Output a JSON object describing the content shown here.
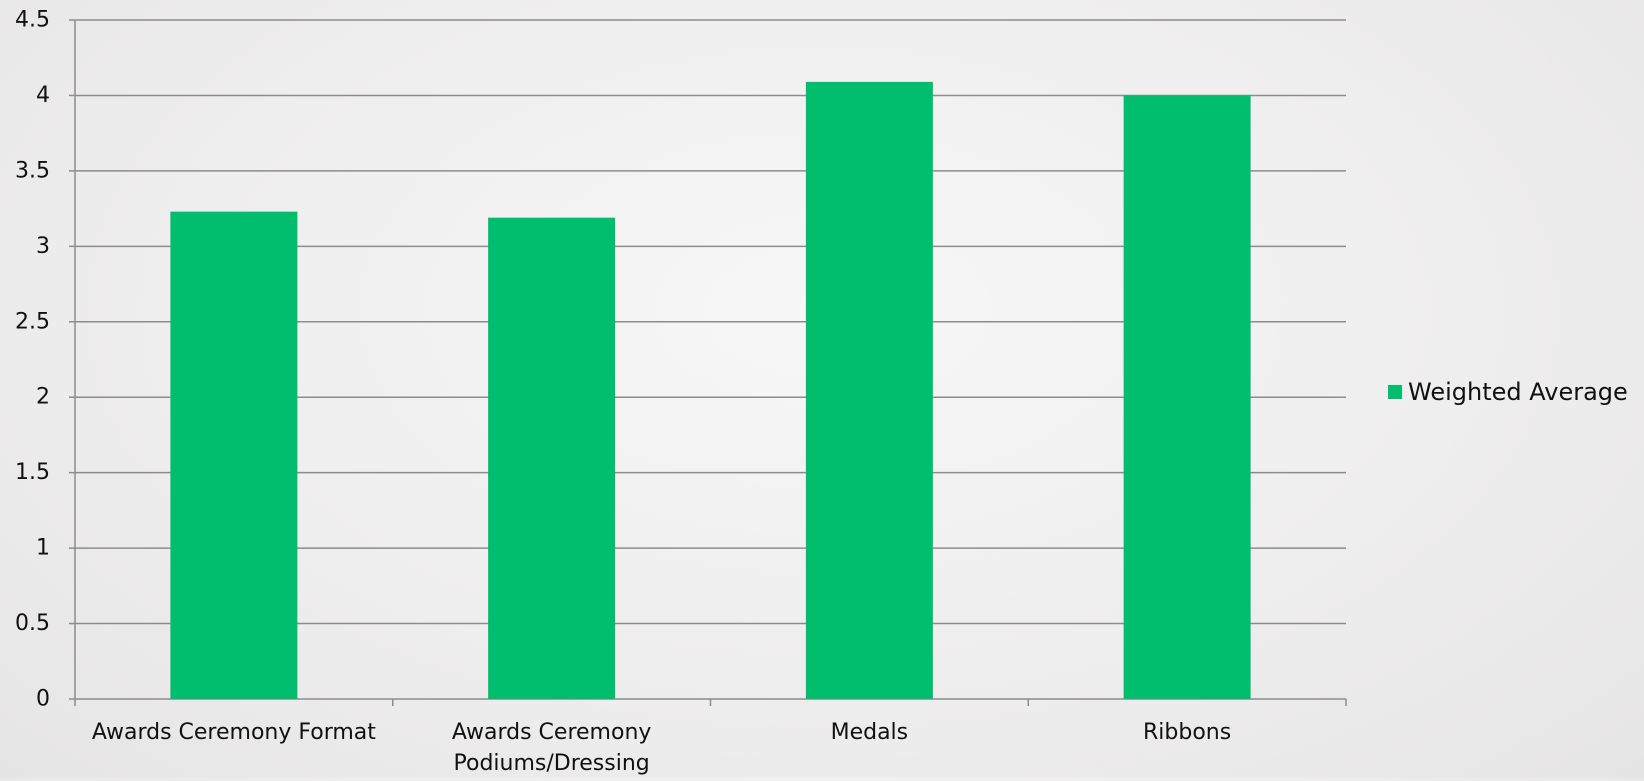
{
  "chart_data": {
    "type": "bar",
    "title": "",
    "xlabel": "",
    "ylabel": "",
    "categories": [
      [
        "Awards Ceremony Format"
      ],
      [
        "Awards Ceremony",
        "Podiums/Dressing"
      ],
      [
        "Medals"
      ],
      [
        "Ribbons"
      ]
    ],
    "series": [
      {
        "name": "Weighted Average",
        "values": [
          3.23,
          3.19,
          4.09,
          4.0
        ],
        "color": "#00be6e"
      }
    ],
    "ylim": [
      0,
      4.5
    ],
    "yticks": [
      "0",
      "0.5",
      "1",
      "1.5",
      "2",
      "2.5",
      "3",
      "3.5",
      "4",
      "4.5"
    ],
    "grid": true,
    "legend": {
      "position": "right"
    },
    "colors": {
      "gridline": "#8c8c8c",
      "axis": "#8c8c8c",
      "text": "#111111"
    }
  }
}
